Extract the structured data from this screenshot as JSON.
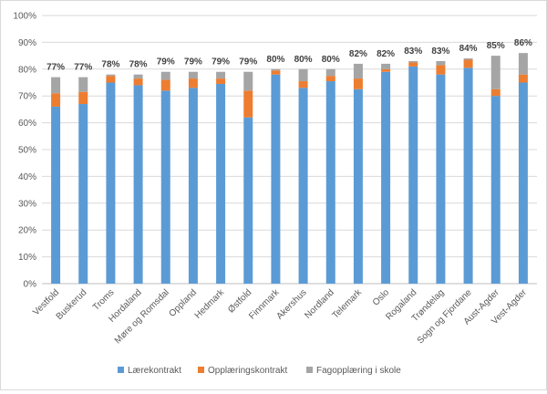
{
  "chart_data": {
    "type": "bar",
    "stacked": true,
    "title": "",
    "xlabel": "",
    "ylabel": "",
    "ylim": [
      0,
      100
    ],
    "y_unit": "%",
    "y_ticks": [
      "0%",
      "10%",
      "20%",
      "30%",
      "40%",
      "50%",
      "60%",
      "70%",
      "80%",
      "90%",
      "100%"
    ],
    "grid": true,
    "legend_position": "bottom",
    "categories": [
      "Vestfold",
      "Buskerud",
      "Troms",
      "Hordaland",
      "Møre og Romsdal",
      "Oppland",
      "Hedmark",
      "Østfold",
      "Finnmark",
      "Akershus",
      "Nordland",
      "Telemark",
      "Oslo",
      "Rogaland",
      "Trøndelag",
      "Sogn og Fjordane",
      "Aust-Agder",
      "Vest-Agder"
    ],
    "series": [
      {
        "name": "Lærekontrakt",
        "color": "#5b9bd5",
        "values": [
          66,
          67,
          75,
          74,
          72,
          73,
          74.5,
          62,
          78,
          73,
          75.5,
          72.5,
          79,
          81,
          78,
          80.5,
          70,
          75
        ]
      },
      {
        "name": "Opplæringskontrakt",
        "color": "#ed7d31",
        "values": [
          5,
          4.5,
          2.5,
          2.5,
          4,
          3.5,
          2,
          10,
          1.5,
          2.5,
          2,
          4,
          1,
          1.5,
          3.5,
          3,
          2.5,
          3
        ]
      },
      {
        "name": "Fagopplæring i skole",
        "color": "#a5a5a5",
        "values": [
          6,
          5.5,
          0.5,
          1.5,
          3,
          2.5,
          2.5,
          7,
          0.5,
          4.5,
          2.5,
          5.5,
          2,
          0.5,
          1.5,
          0.5,
          12.5,
          8
        ]
      }
    ],
    "total_labels": [
      "77%",
      "77%",
      "78%",
      "78%",
      "79%",
      "79%",
      "79%",
      "79%",
      "80%",
      "80%",
      "80%",
      "82%",
      "82%",
      "83%",
      "83%",
      "84%",
      "85%",
      "86%"
    ]
  }
}
